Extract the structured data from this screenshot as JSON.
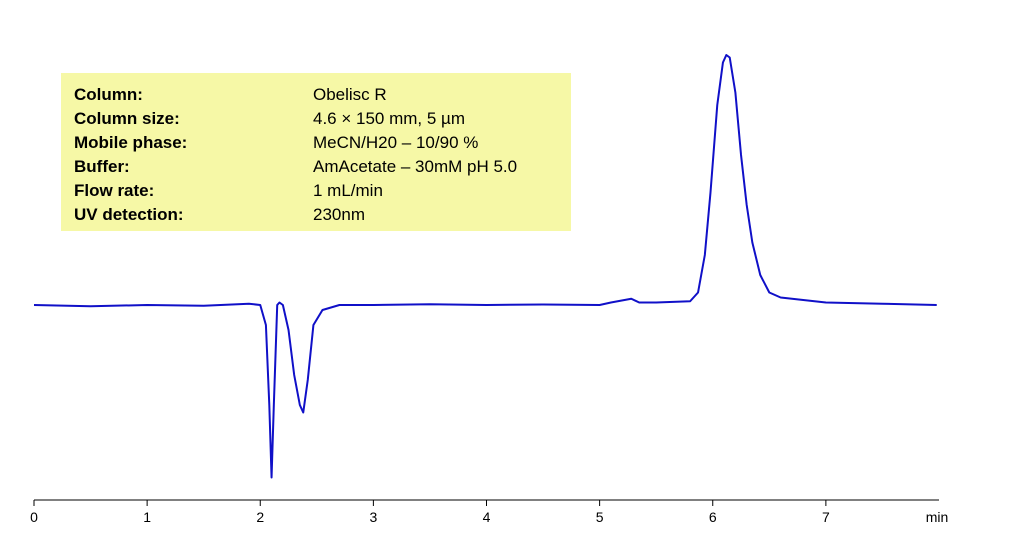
{
  "chart_data": {
    "type": "line",
    "x_label": "min",
    "color": "#1010c8",
    "xlim": [
      0,
      8
    ],
    "xticks": [
      0,
      1,
      2,
      3,
      4,
      5,
      6,
      7
    ],
    "ylim": [
      -78,
      102
    ],
    "x": [
      0,
      0.5,
      1.0,
      1.5,
      1.9,
      2.0,
      2.05,
      2.08,
      2.1,
      2.12,
      2.15,
      2.17,
      2.2,
      2.25,
      2.3,
      2.35,
      2.38,
      2.42,
      2.47,
      2.55,
      2.7,
      3,
      3.5,
      4,
      4.5,
      5,
      5.1,
      5.28,
      5.35,
      5.5,
      5.8,
      5.87,
      5.93,
      5.98,
      6.04,
      6.09,
      6.12,
      6.15,
      6.2,
      6.25,
      6.3,
      6.35,
      6.42,
      6.5,
      6.6,
      6.8,
      7,
      7.5,
      7.98
    ],
    "values": [
      0,
      -0.5,
      0,
      -0.3,
      0.5,
      0,
      -8,
      -40,
      -69,
      -40,
      0,
      1,
      0,
      -10,
      -28,
      -40,
      -43,
      -30,
      -8,
      -2,
      0,
      0,
      0.3,
      0,
      0.2,
      0,
      1,
      2.5,
      1,
      1,
      1.5,
      5,
      20,
      45,
      80,
      97,
      100,
      99,
      85,
      60,
      40,
      25,
      12,
      5,
      3,
      2,
      1,
      0.5,
      0
    ],
    "annotations": [
      {
        "label": "Column:",
        "value": "Obelisc R"
      },
      {
        "label": "Column size:",
        "value": "4.6 × 150 mm, 5 µm"
      },
      {
        "label": "Mobile phase:",
        "value": "MeCN/H20 – 10/90 %"
      },
      {
        "label": "Buffer:",
        "value": "AmAcetate – 30mM pH 5.0"
      },
      {
        "label": "Flow rate:",
        "value": "1 mL/min"
      },
      {
        "label": "UV detection:",
        "value": "230nm"
      }
    ]
  }
}
